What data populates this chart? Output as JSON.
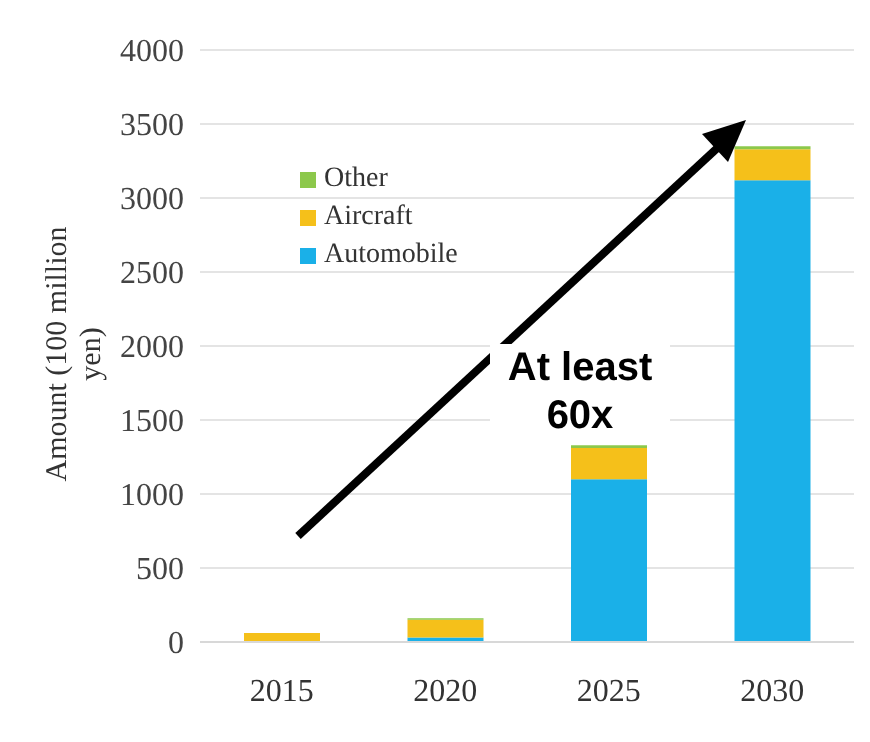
{
  "chart_data": {
    "type": "bar",
    "stacked": true,
    "ylabel": "Amount (100 million yen)",
    "categories": [
      "2015",
      "2020",
      "2025",
      "2030"
    ],
    "series": [
      {
        "name": "Automobile",
        "color": "#1ab0e8",
        "values": [
          0,
          30,
          1100,
          3120
        ]
      },
      {
        "name": "Aircraft",
        "color": "#f5c01a",
        "values": [
          60,
          120,
          210,
          210
        ]
      },
      {
        "name": "Other",
        "color": "#8cc84b",
        "values": [
          null,
          10,
          20,
          20
        ]
      }
    ],
    "ylim": [
      0,
      4000
    ],
    "yticks": [
      0,
      500,
      1000,
      1500,
      2000,
      2500,
      3000,
      3500,
      4000
    ],
    "grid": "y",
    "legend": "top left",
    "annotations": [
      "At least 60x"
    ]
  }
}
